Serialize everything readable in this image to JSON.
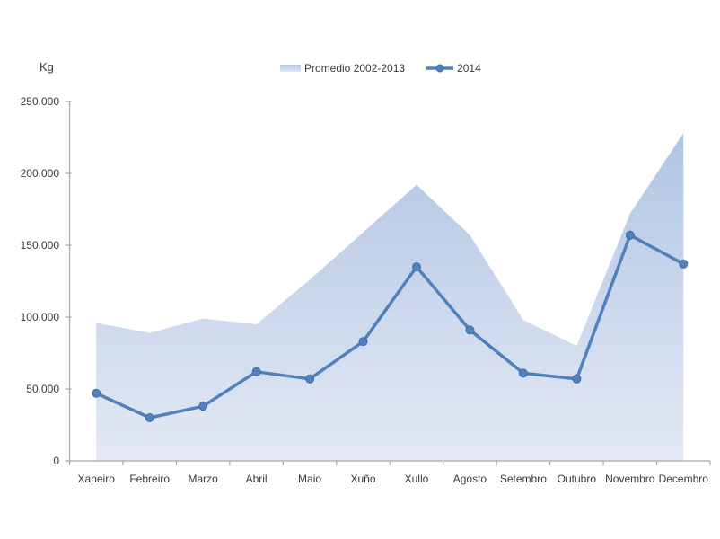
{
  "axis": {
    "y_title": "Kg"
  },
  "legend": {
    "items": [
      {
        "label": "Promedio 2002-2013",
        "swatch": "area-gradient"
      },
      {
        "label": "2014",
        "swatch": "line-marker"
      }
    ]
  },
  "chart_data": {
    "type": "area+line",
    "title": "",
    "ylabel": "Kg",
    "categories": [
      "Xaneiro",
      "Febreiro",
      "Marzo",
      "Abril",
      "Maio",
      "Xuño",
      "Xullo",
      "Agosto",
      "Setembro",
      "Outubro",
      "Novembro",
      "Decembro"
    ],
    "series": [
      {
        "name": "Promedio 2002-2013",
        "type": "area",
        "values": [
          96000,
          89000,
          99000,
          95000,
          126000,
          159000,
          192000,
          157000,
          98000,
          80000,
          172000,
          228000
        ]
      },
      {
        "name": "2014",
        "type": "line",
        "values": [
          47000,
          30000,
          38000,
          62000,
          57000,
          83000,
          135000,
          91000,
          61000,
          57000,
          157000,
          137000
        ]
      }
    ],
    "ylim": [
      0,
      250000
    ],
    "ytick_step": 50000,
    "ytick_labels": [
      "0",
      "50.000",
      "100.000",
      "150.000",
      "200.000",
      "250.000"
    ],
    "grid": false,
    "legend_position": "top-center"
  },
  "colors": {
    "line": "#4f81bd",
    "marker": "#4f81bd",
    "marker_stroke": "#3f6fa8",
    "area_top": "#b0c5e3",
    "area_bottom": "#e4e9f4",
    "axis_line": "#a6a6a6",
    "text": "#3a3a3a"
  }
}
